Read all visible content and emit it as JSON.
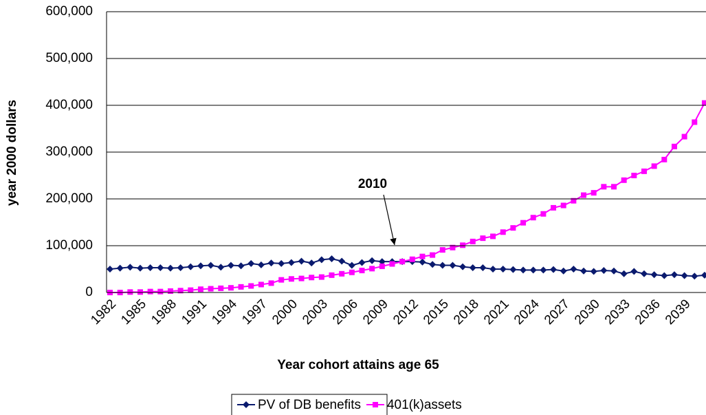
{
  "chart_data": {
    "type": "line",
    "y_label": "year 2000 dollars",
    "x_label": "Year cohort attains age 65",
    "annotation": "2010",
    "categories": [
      "1982",
      null,
      null,
      "1985",
      null,
      null,
      "1988",
      null,
      null,
      "1991",
      null,
      null,
      "1994",
      null,
      null,
      "1997",
      null,
      null,
      "2000",
      null,
      null,
      "2003",
      null,
      null,
      "2006",
      null,
      null,
      "2009",
      null,
      null,
      "2012",
      null,
      null,
      "2015",
      null,
      null,
      "2018",
      null,
      null,
      "2021",
      null,
      null,
      "2024",
      null,
      null,
      "2027",
      null,
      null,
      "2030",
      null,
      null,
      "2033",
      null,
      null,
      "2036",
      null,
      null,
      "2039",
      null,
      null
    ],
    "series": [
      {
        "name": "PV of DB benefits",
        "color": "#0a1a6e",
        "marker": "diamond",
        "values": [
          50000,
          52000,
          54000,
          52000,
          53000,
          53000,
          52000,
          53000,
          55000,
          57000,
          58000,
          54000,
          58000,
          57000,
          62000,
          59000,
          63000,
          62000,
          64000,
          67000,
          63000,
          70000,
          72000,
          67000,
          58000,
          64000,
          68000,
          66000,
          66000,
          66000,
          66000,
          65000,
          60000,
          58000,
          58000,
          55000,
          53000,
          53000,
          50000,
          50000,
          49000,
          48000,
          48000,
          48000,
          49000,
          46000,
          50000,
          46000,
          45000,
          47000,
          46000,
          40000,
          45000,
          40000,
          38000,
          36000,
          38000,
          36000,
          35000,
          37000
        ]
      },
      {
        "name": "401(k)assets",
        "color": "#ff00ff",
        "marker": "square",
        "values": [
          0,
          0,
          1000,
          1000,
          2000,
          2000,
          3000,
          4000,
          5000,
          7000,
          8000,
          9000,
          10000,
          12000,
          14000,
          17000,
          20000,
          27000,
          29000,
          30000,
          32000,
          33000,
          37000,
          40000,
          43000,
          47000,
          51000,
          56000,
          61000,
          66000,
          71000,
          77000,
          80000,
          91000,
          96000,
          101000,
          109000,
          116000,
          120000,
          129000,
          138000,
          149000,
          160000,
          168000,
          181000,
          186000,
          196000,
          208000,
          213000,
          226000,
          226000,
          240000,
          250000,
          259000,
          270000,
          284000,
          312000,
          333000,
          364000,
          405000
        ]
      }
    ],
    "ylim": [
      0,
      600000
    ],
    "yticks": [
      0,
      {
        "value": 100000,
        "label": "100,000"
      },
      {
        "value": 200000,
        "label": "200,000"
      },
      {
        "value": 300000,
        "label": "300,000"
      },
      {
        "value": 400000,
        "label": "400,000"
      },
      {
        "value": 500000,
        "label": "500,000"
      },
      {
        "value": 600000,
        "label": "600,000"
      }
    ],
    "grid": true,
    "legend": "bottom"
  }
}
